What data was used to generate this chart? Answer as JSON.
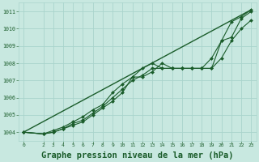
{
  "bg_color": "#c8e8e0",
  "grid_color": "#aad4cc",
  "line_color": "#1a5c2a",
  "marker_color": "#1a5c2a",
  "title": "Graphe pression niveau de la mer (hPa)",
  "title_fontsize": 7.5,
  "ylim": [
    1003.5,
    1011.5
  ],
  "xlim": [
    -0.5,
    23.5
  ],
  "yticks": [
    1004,
    1005,
    1006,
    1007,
    1008,
    1009,
    1010,
    1011
  ],
  "xticks": [
    0,
    2,
    3,
    4,
    5,
    6,
    7,
    8,
    9,
    10,
    11,
    12,
    13,
    14,
    15,
    16,
    17,
    18,
    19,
    20,
    21,
    22,
    23
  ],
  "series": [
    {
      "x": [
        0,
        2,
        3,
        4,
        5,
        6,
        7,
        8,
        9,
        10,
        11,
        12,
        13,
        14,
        15,
        16,
        17,
        18,
        19,
        20,
        21,
        22,
        23
      ],
      "y": [
        1004.0,
        1003.9,
        1004.0,
        1004.2,
        1004.4,
        1004.6,
        1005.0,
        1005.4,
        1005.8,
        1006.3,
        1007.2,
        1007.2,
        1007.5,
        1008.0,
        1007.7,
        1007.7,
        1007.7,
        1007.7,
        1008.3,
        1009.3,
        1010.4,
        1010.7,
        1011.1
      ],
      "marker": "D",
      "markersize": 2.0,
      "linewidth": 0.8,
      "with_markers": true
    },
    {
      "x": [
        0,
        2,
        3,
        4,
        5,
        6,
        7,
        8,
        9,
        10,
        11,
        12,
        13,
        14,
        15,
        16,
        17,
        18,
        19,
        20,
        21,
        22,
        23
      ],
      "y": [
        1004.0,
        1003.9,
        1004.0,
        1004.2,
        1004.5,
        1004.7,
        1005.1,
        1005.5,
        1006.0,
        1006.5,
        1007.0,
        1007.3,
        1007.7,
        1007.7,
        1007.7,
        1007.7,
        1007.7,
        1007.7,
        1007.7,
        1008.3,
        1009.3,
        1010.0,
        1010.5
      ],
      "marker": "D",
      "markersize": 2.0,
      "linewidth": 0.8,
      "with_markers": true
    },
    {
      "x": [
        0,
        2,
        3,
        4,
        5,
        6,
        7,
        8,
        9,
        10,
        11,
        12,
        13,
        14,
        15,
        16,
        17,
        18,
        19,
        20,
        21,
        22,
        23
      ],
      "y": [
        1004.0,
        1003.9,
        1004.1,
        1004.3,
        1004.6,
        1004.9,
        1005.3,
        1005.6,
        1006.3,
        1006.8,
        1007.2,
        1007.7,
        1008.0,
        1007.7,
        1007.7,
        1007.7,
        1007.7,
        1007.7,
        1007.7,
        1009.3,
        1009.5,
        1010.6,
        1011.0
      ],
      "marker": "D",
      "markersize": 2.0,
      "linewidth": 0.8,
      "with_markers": true
    },
    {
      "x": [
        0,
        23
      ],
      "y": [
        1004.0,
        1011.1
      ],
      "marker": null,
      "markersize": 0,
      "linewidth": 1.0,
      "with_markers": false
    }
  ]
}
